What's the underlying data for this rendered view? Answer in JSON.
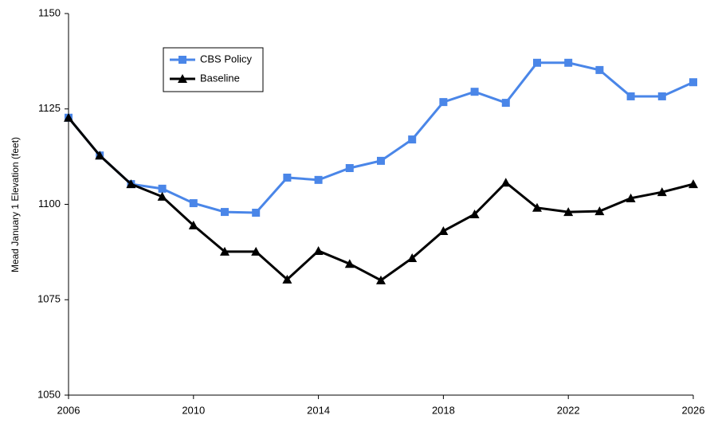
{
  "chart_data": {
    "type": "line",
    "y_label": "Mead January 1 Elevation (feet)",
    "x": [
      2006,
      2007,
      2008,
      2009,
      2010,
      2011,
      2012,
      2013,
      2014,
      2015,
      2016,
      2017,
      2018,
      2019,
      2020,
      2021,
      2022,
      2023,
      2024,
      2025,
      2026
    ],
    "series": [
      {
        "name": "CBS Policy",
        "color": "#4a86e8",
        "marker": "square",
        "values": [
          1122.7,
          1112.8,
          1105.3,
          1104.1,
          1100.3,
          1098.0,
          1097.8,
          1107.0,
          1106.4,
          1109.5,
          1111.4,
          1117.0,
          1126.8,
          1129.5,
          1126.6,
          1137.1,
          1137.1,
          1135.2,
          1128.3,
          1128.3,
          1132.0
        ]
      },
      {
        "name": "Baseline",
        "color": "#000000",
        "marker": "triangle",
        "values": [
          1122.7,
          1112.8,
          1105.3,
          1102.0,
          1094.5,
          1087.6,
          1087.6,
          1080.3,
          1087.8,
          1084.4,
          1080.1,
          1085.9,
          1093.0,
          1097.4,
          1105.7,
          1099.1,
          1098.0,
          1098.2,
          1101.6,
          1103.2,
          1105.3
        ]
      }
    ],
    "xlim": [
      2006,
      2026
    ],
    "xticks": [
      2006,
      2010,
      2014,
      2018,
      2022,
      2026
    ],
    "ylim": [
      1050,
      1150
    ],
    "yticks": [
      1050,
      1075,
      1100,
      1125,
      1150
    ],
    "grid": false,
    "legend": "upper left"
  }
}
